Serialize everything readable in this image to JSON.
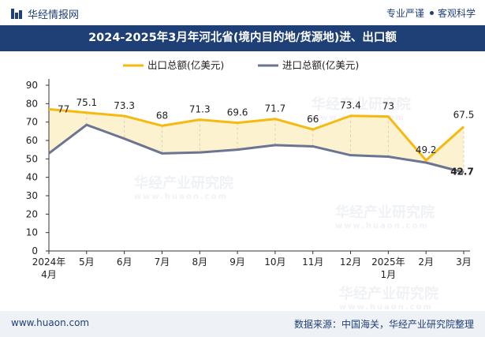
{
  "header": {
    "brand": "华经情报网",
    "tagline_left": "专业严谨",
    "tagline_right": "客观科学"
  },
  "title": "2024-2025年3月年河北省(境内目的地/货源地)进、出口额",
  "footer": {
    "website": "www.huaon.com",
    "source": "数据来源：中国海关，华经产业研究院整理"
  },
  "watermark": {
    "name": "华经产业研究院",
    "url": "www.huaon.com"
  },
  "colors": {
    "export": "#f5b90f",
    "import": "#6b7491",
    "fill": "#fdf2cf",
    "accent": "#1f3f77"
  },
  "chart_data": {
    "type": "line",
    "categories": [
      [
        "2024年",
        "4月"
      ],
      [
        "5月"
      ],
      [
        "6月"
      ],
      [
        "7月"
      ],
      [
        "8月"
      ],
      [
        "9月"
      ],
      [
        "10月"
      ],
      [
        "11月"
      ],
      [
        "12月"
      ],
      [
        "2025年",
        "1月"
      ],
      [
        "2月"
      ],
      [
        "3月"
      ]
    ],
    "series": [
      {
        "name": "出口总额(亿美元)",
        "values": [
          77,
          75.1,
          73.3,
          68,
          71.3,
          69.6,
          71.7,
          66,
          73.4,
          73,
          49.2,
          67.5
        ],
        "labels": [
          "77",
          "75.1",
          "73.3",
          "68",
          "71.3",
          "69.6",
          "71.7",
          "66",
          "73.4",
          "73",
          "49.2",
          "67.5"
        ]
      },
      {
        "name": "进口总额(亿美元)",
        "values": [
          53,
          68.5,
          61,
          53,
          53.5,
          55,
          57.5,
          56.8,
          52,
          51.2,
          48,
          42.7
        ],
        "labels": [
          "",
          "",
          "",
          "",
          "",
          "",
          "",
          "",
          "",
          "",
          "",
          "42.7"
        ]
      }
    ],
    "ylim": [
      0,
      90
    ],
    "yticks": [
      0,
      10,
      20,
      30,
      40,
      50,
      60,
      70,
      80,
      90
    ],
    "legend_position": "top-center",
    "grid": false
  }
}
